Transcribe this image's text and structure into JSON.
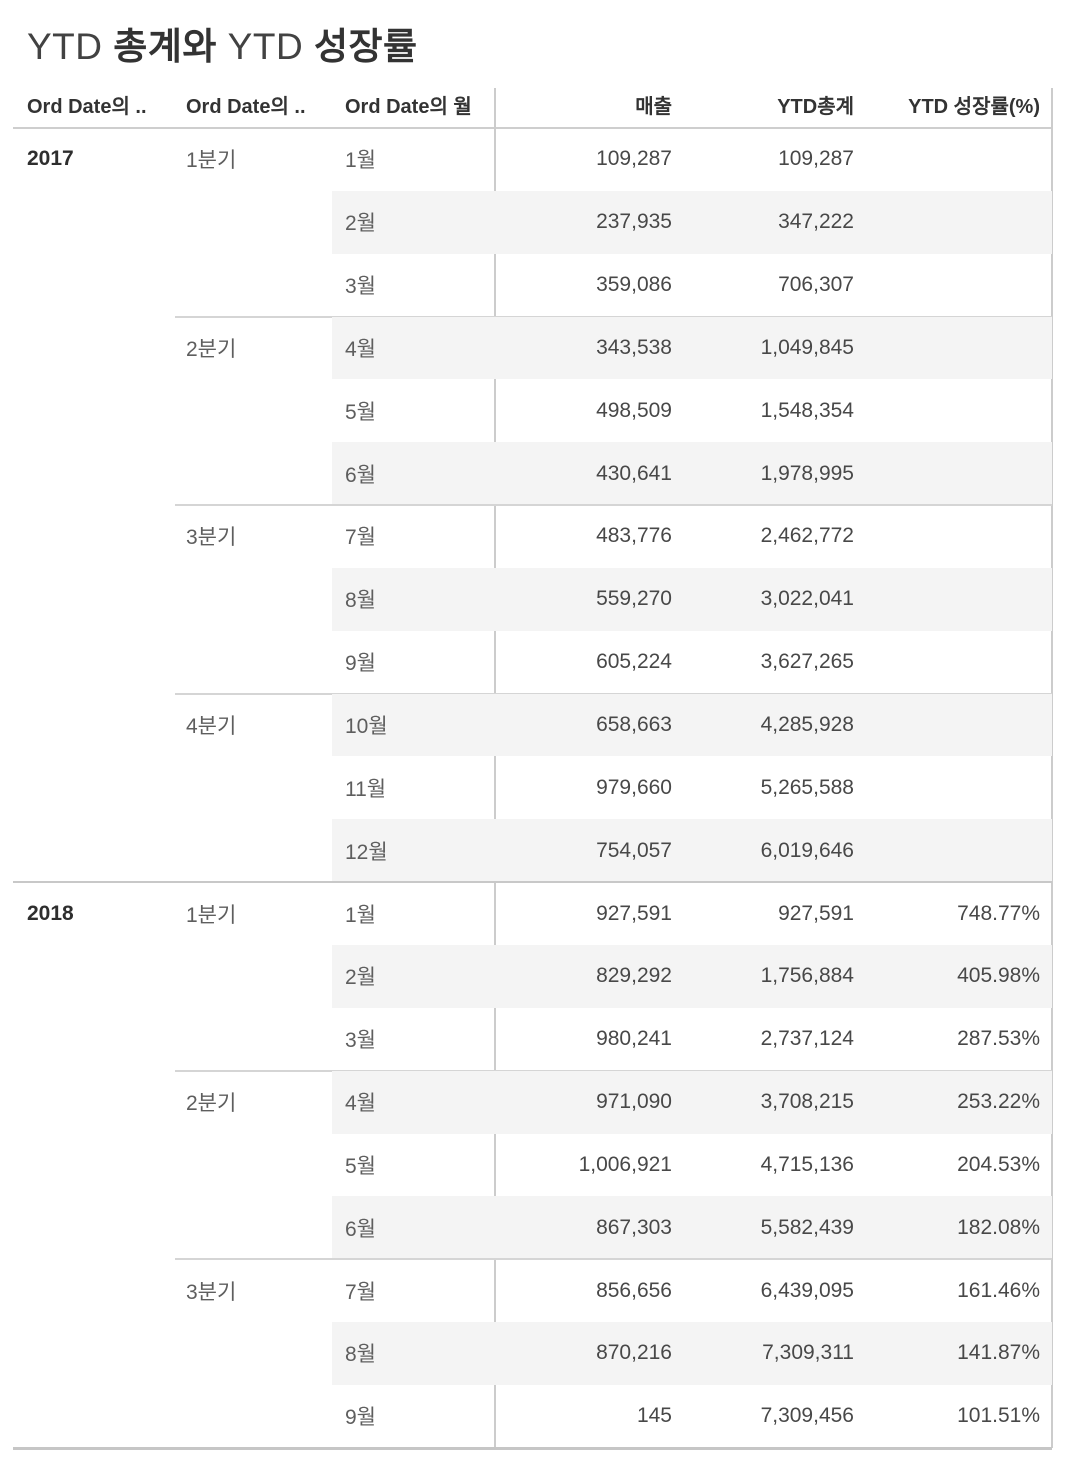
{
  "title": {
    "parts": [
      "YTD ",
      "총계와",
      " YTD ",
      "성장률"
    ]
  },
  "colors": {
    "background": "#ffffff",
    "band": "#f4f4f4",
    "grid_line": "#cccccc",
    "quarter_line": "#d5d5d5",
    "year_line": "#c8c8c8",
    "header_text": "#333333",
    "label_text": "#5e5e5e",
    "value_text": "#484848"
  },
  "chart_data": {
    "type": "table",
    "title": "YTD 총계와 YTD 성장률",
    "columns": [
      "Ord Date의 ..",
      "Ord Date의 ..",
      "Ord Date의 월",
      "매출",
      "YTD총계",
      "YTD 성장률(%)"
    ],
    "rows": [
      {
        "year": "2017",
        "quarter": "1분기",
        "month": "1월",
        "sales": "109,287",
        "ytd": "109,287",
        "growth": ""
      },
      {
        "year": "",
        "quarter": "",
        "month": "2월",
        "sales": "237,935",
        "ytd": "347,222",
        "growth": ""
      },
      {
        "year": "",
        "quarter": "",
        "month": "3월",
        "sales": "359,086",
        "ytd": "706,307",
        "growth": ""
      },
      {
        "year": "",
        "quarter": "2분기",
        "month": "4월",
        "sales": "343,538",
        "ytd": "1,049,845",
        "growth": ""
      },
      {
        "year": "",
        "quarter": "",
        "month": "5월",
        "sales": "498,509",
        "ytd": "1,548,354",
        "growth": ""
      },
      {
        "year": "",
        "quarter": "",
        "month": "6월",
        "sales": "430,641",
        "ytd": "1,978,995",
        "growth": ""
      },
      {
        "year": "",
        "quarter": "3분기",
        "month": "7월",
        "sales": "483,776",
        "ytd": "2,462,772",
        "growth": ""
      },
      {
        "year": "",
        "quarter": "",
        "month": "8월",
        "sales": "559,270",
        "ytd": "3,022,041",
        "growth": ""
      },
      {
        "year": "",
        "quarter": "",
        "month": "9월",
        "sales": "605,224",
        "ytd": "3,627,265",
        "growth": ""
      },
      {
        "year": "",
        "quarter": "4분기",
        "month": "10월",
        "sales": "658,663",
        "ytd": "4,285,928",
        "growth": ""
      },
      {
        "year": "",
        "quarter": "",
        "month": "11월",
        "sales": "979,660",
        "ytd": "5,265,588",
        "growth": ""
      },
      {
        "year": "",
        "quarter": "",
        "month": "12월",
        "sales": "754,057",
        "ytd": "6,019,646",
        "growth": ""
      },
      {
        "year": "2018",
        "quarter": "1분기",
        "month": "1월",
        "sales": "927,591",
        "ytd": "927,591",
        "growth": "748.77%"
      },
      {
        "year": "",
        "quarter": "",
        "month": "2월",
        "sales": "829,292",
        "ytd": "1,756,884",
        "growth": "405.98%"
      },
      {
        "year": "",
        "quarter": "",
        "month": "3월",
        "sales": "980,241",
        "ytd": "2,737,124",
        "growth": "287.53%"
      },
      {
        "year": "",
        "quarter": "2분기",
        "month": "4월",
        "sales": "971,090",
        "ytd": "3,708,215",
        "growth": "253.22%"
      },
      {
        "year": "",
        "quarter": "",
        "month": "5월",
        "sales": "1,006,921",
        "ytd": "4,715,136",
        "growth": "204.53%"
      },
      {
        "year": "",
        "quarter": "",
        "month": "6월",
        "sales": "867,303",
        "ytd": "5,582,439",
        "growth": "182.08%"
      },
      {
        "year": "",
        "quarter": "3분기",
        "month": "7월",
        "sales": "856,656",
        "ytd": "6,439,095",
        "growth": "161.46%"
      },
      {
        "year": "",
        "quarter": "",
        "month": "8월",
        "sales": "870,216",
        "ytd": "7,309,311",
        "growth": "141.87%"
      },
      {
        "year": "",
        "quarter": "",
        "month": "9월",
        "sales": "145",
        "ytd": "7,309,456",
        "growth": "101.51%"
      }
    ]
  }
}
